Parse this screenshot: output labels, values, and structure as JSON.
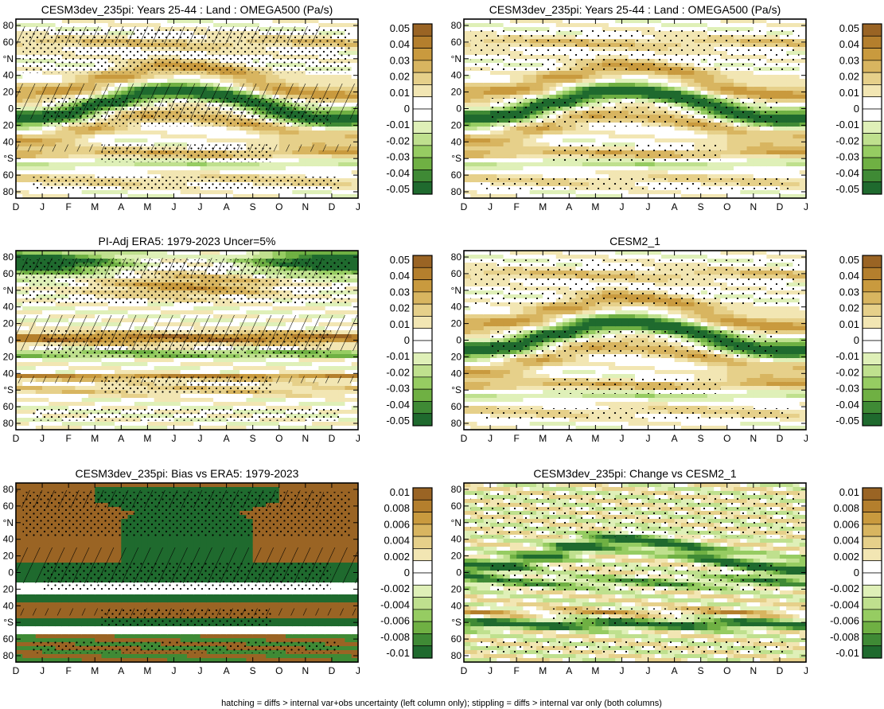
{
  "footer_text": "hatching = diffs > internal var+obs uncertainty (left column only); stippling = diffs > internal var only (both columns)",
  "palette": {
    "brown": [
      "#f2e6b3",
      "#e6d08a",
      "#d8b560",
      "#c99a3e",
      "#b47f2d",
      "#9a6424"
    ],
    "green": [
      "#dff0b8",
      "#bfe08e",
      "#96cc62",
      "#6fb043",
      "#3f8a35",
      "#1f6a2e"
    ],
    "zero": "#ffffff"
  },
  "x_tick_labels": [
    "D",
    "J",
    "F",
    "M",
    "A",
    "M",
    "J",
    "J",
    "A",
    "S",
    "O",
    "N",
    "D",
    "J"
  ],
  "y_tick_labels": [
    "80",
    "60",
    "°N",
    "40",
    "20",
    "0",
    "20",
    "40",
    "°S",
    "60",
    "80"
  ],
  "chart_data": [
    {
      "type": "heatmap",
      "title": "CESM3dev_235pi: Years 25-44 : Land : OMEGA500 (Pa/s)",
      "x_ticks": [
        "D",
        "J",
        "F",
        "M",
        "A",
        "M",
        "J",
        "J",
        "A",
        "S",
        "O",
        "N",
        "D",
        "J"
      ],
      "y_ticks": [
        "80",
        "60",
        "°N",
        "40",
        "20",
        "0",
        "20",
        "40",
        "°S",
        "60",
        "80"
      ],
      "colorbar_labels": [
        "0.05",
        "0.04",
        "0.03",
        "0.02",
        "0.01",
        "0",
        "-0.01",
        "-0.02",
        "-0.03",
        "-0.04",
        "-0.05"
      ],
      "range": [
        -0.05,
        0.05
      ],
      "hatching": true,
      "stippling": true,
      "variant": "clim"
    },
    {
      "type": "heatmap",
      "title": "CESM3dev_235pi: Years 25-44 : Land : OMEGA500 (Pa/s)",
      "x_ticks": [
        "D",
        "J",
        "F",
        "M",
        "A",
        "M",
        "J",
        "J",
        "A",
        "S",
        "O",
        "N",
        "D",
        "J"
      ],
      "y_ticks": [
        "80",
        "60",
        "°N",
        "40",
        "20",
        "0",
        "20",
        "40",
        "°S",
        "60",
        "80"
      ],
      "colorbar_labels": [
        "0.05",
        "0.04",
        "0.03",
        "0.02",
        "0.01",
        "0",
        "-0.01",
        "-0.02",
        "-0.03",
        "-0.04",
        "-0.05"
      ],
      "range": [
        -0.05,
        0.05
      ],
      "hatching": false,
      "stippling": true,
      "variant": "clim"
    },
    {
      "type": "heatmap",
      "title": "PI-Adj ERA5: 1979-2023 Uncer=5%",
      "x_ticks": [
        "D",
        "J",
        "F",
        "M",
        "A",
        "M",
        "J",
        "J",
        "A",
        "S",
        "O",
        "N",
        "D",
        "J"
      ],
      "y_ticks": [
        "80",
        "60",
        "°N",
        "40",
        "20",
        "0",
        "20",
        "40",
        "°S",
        "60",
        "80"
      ],
      "colorbar_labels": [
        "0.05",
        "0.04",
        "0.03",
        "0.02",
        "0.01",
        "0",
        "-0.01",
        "-0.02",
        "-0.03",
        "-0.04",
        "-0.05"
      ],
      "range": [
        -0.05,
        0.05
      ],
      "hatching": true,
      "stippling": true,
      "variant": "era5"
    },
    {
      "type": "heatmap",
      "title": "CESM2_1",
      "x_ticks": [
        "D",
        "J",
        "F",
        "M",
        "A",
        "M",
        "J",
        "J",
        "A",
        "S",
        "O",
        "N",
        "D",
        "J"
      ],
      "y_ticks": [
        "80",
        "60",
        "°N",
        "40",
        "20",
        "0",
        "20",
        "40",
        "°S",
        "60",
        "80"
      ],
      "colorbar_labels": [
        "0.05",
        "0.04",
        "0.03",
        "0.02",
        "0.01",
        "0",
        "-0.01",
        "-0.02",
        "-0.03",
        "-0.04",
        "-0.05"
      ],
      "range": [
        -0.05,
        0.05
      ],
      "hatching": false,
      "stippling": true,
      "variant": "clim"
    },
    {
      "type": "heatmap",
      "title": "CESM3dev_235pi: Bias vs ERA5: 1979-2023",
      "x_ticks": [
        "D",
        "J",
        "F",
        "M",
        "A",
        "M",
        "J",
        "J",
        "A",
        "S",
        "O",
        "N",
        "D",
        "J"
      ],
      "y_ticks": [
        "80",
        "60",
        "°N",
        "40",
        "20",
        "0",
        "20",
        "40",
        "°S",
        "60",
        "80"
      ],
      "colorbar_labels": [
        "0.01",
        "0.008",
        "0.006",
        "0.004",
        "0.002",
        "0",
        "-0.002",
        "-0.004",
        "-0.006",
        "-0.008",
        "-0.01"
      ],
      "range": [
        -0.01,
        0.01
      ],
      "hatching": true,
      "stippling": true,
      "variant": "bias"
    },
    {
      "type": "heatmap",
      "title": "CESM3dev_235pi: Change vs CESM2_1",
      "x_ticks": [
        "D",
        "J",
        "F",
        "M",
        "A",
        "M",
        "J",
        "J",
        "A",
        "S",
        "O",
        "N",
        "D",
        "J"
      ],
      "y_ticks": [
        "80",
        "60",
        "°N",
        "40",
        "20",
        "0",
        "20",
        "40",
        "°S",
        "60",
        "80"
      ],
      "colorbar_labels": [
        "0.01",
        "0.008",
        "0.006",
        "0.004",
        "0.002",
        "0",
        "-0.002",
        "-0.004",
        "-0.006",
        "-0.008",
        "-0.01"
      ],
      "range": [
        -0.01,
        0.01
      ],
      "hatching": false,
      "stippling": true,
      "variant": "change"
    }
  ]
}
